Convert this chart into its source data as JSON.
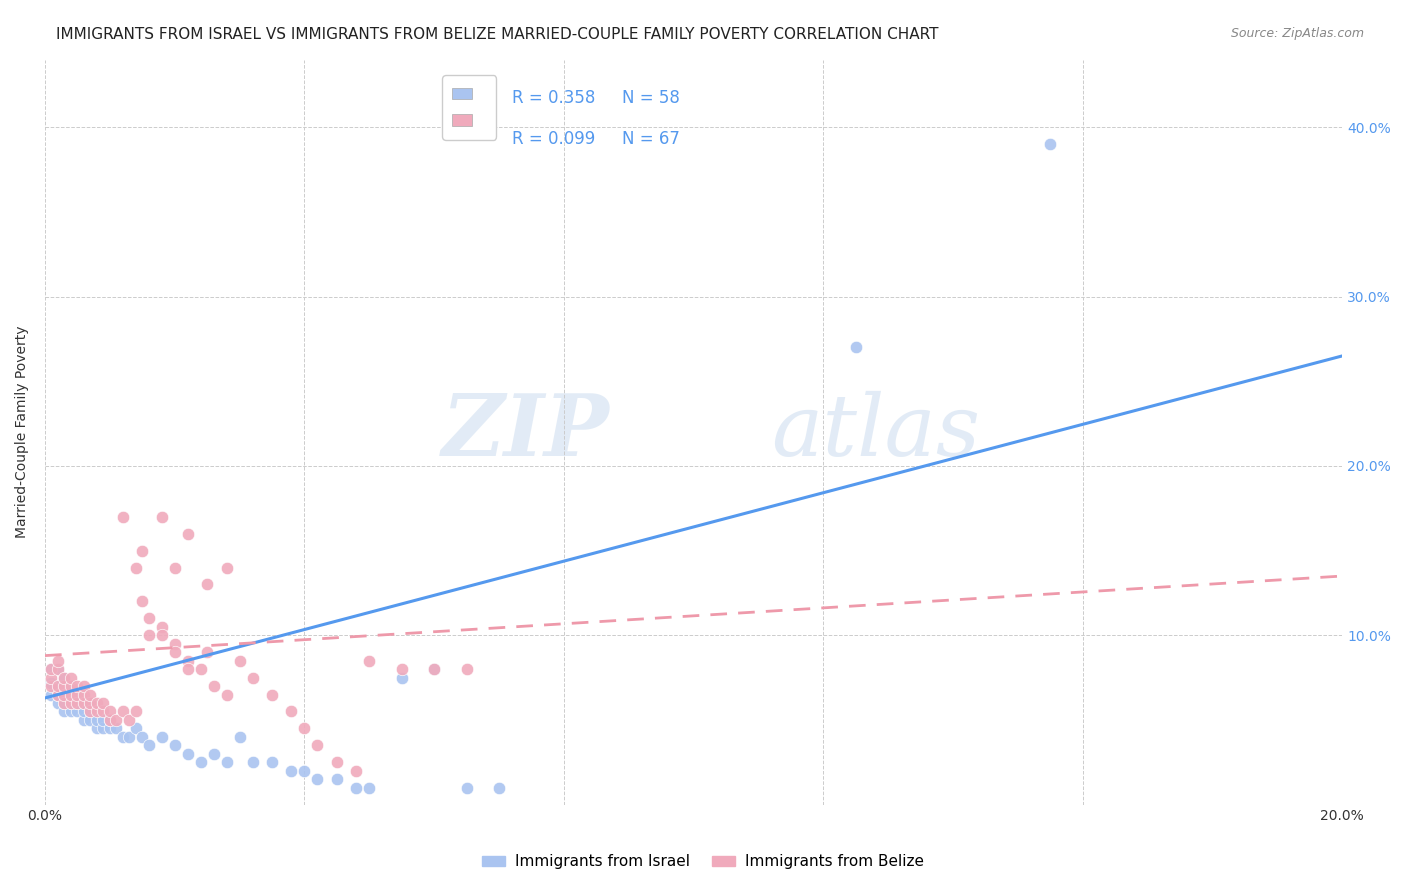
{
  "title": "IMMIGRANTS FROM ISRAEL VS IMMIGRANTS FROM BELIZE MARRIED-COUPLE FAMILY POVERTY CORRELATION CHART",
  "source": "Source: ZipAtlas.com",
  "ylabel": "Married-Couple Family Poverty",
  "xlim": [
    0.0,
    0.2
  ],
  "ylim": [
    0.0,
    0.44
  ],
  "xticks": [
    0.0,
    0.04,
    0.08,
    0.12,
    0.16,
    0.2
  ],
  "yticks": [
    0.0,
    0.1,
    0.2,
    0.3,
    0.4
  ],
  "xtick_labels": [
    "0.0%",
    "",
    "",
    "",
    "",
    "20.0%"
  ],
  "ytick_labels": [
    "",
    "10.0%",
    "20.0%",
    "30.0%",
    "40.0%"
  ],
  "watermark_zip": "ZIP",
  "watermark_atlas": "atlas",
  "legend_r1": "R = 0.358",
  "legend_n1": "N = 58",
  "legend_r2": "R = 0.099",
  "legend_n2": "N = 67",
  "israel_color": "#aac4f0",
  "belize_color": "#f0aabc",
  "israel_line_color": "#5599ee",
  "belize_line_color": "#ee99aa",
  "israel_scatter_x": [
    0.001,
    0.001,
    0.001,
    0.002,
    0.002,
    0.002,
    0.002,
    0.003,
    0.003,
    0.003,
    0.003,
    0.003,
    0.004,
    0.004,
    0.004,
    0.004,
    0.005,
    0.005,
    0.005,
    0.006,
    0.006,
    0.006,
    0.007,
    0.007,
    0.007,
    0.008,
    0.008,
    0.009,
    0.009,
    0.01,
    0.01,
    0.011,
    0.012,
    0.013,
    0.014,
    0.015,
    0.016,
    0.018,
    0.02,
    0.022,
    0.024,
    0.026,
    0.028,
    0.03,
    0.032,
    0.035,
    0.038,
    0.04,
    0.042,
    0.045,
    0.048,
    0.05,
    0.055,
    0.06,
    0.065,
    0.07,
    0.125,
    0.155
  ],
  "israel_scatter_y": [
    0.065,
    0.072,
    0.08,
    0.06,
    0.065,
    0.07,
    0.08,
    0.055,
    0.06,
    0.065,
    0.07,
    0.075,
    0.055,
    0.06,
    0.065,
    0.07,
    0.055,
    0.06,
    0.065,
    0.05,
    0.055,
    0.06,
    0.05,
    0.055,
    0.06,
    0.045,
    0.05,
    0.045,
    0.05,
    0.045,
    0.05,
    0.045,
    0.04,
    0.04,
    0.045,
    0.04,
    0.035,
    0.04,
    0.035,
    0.03,
    0.025,
    0.03,
    0.025,
    0.04,
    0.025,
    0.025,
    0.02,
    0.02,
    0.015,
    0.015,
    0.01,
    0.01,
    0.075,
    0.08,
    0.01,
    0.01,
    0.27,
    0.39
  ],
  "belize_scatter_x": [
    0.001,
    0.001,
    0.001,
    0.002,
    0.002,
    0.002,
    0.002,
    0.003,
    0.003,
    0.003,
    0.003,
    0.004,
    0.004,
    0.004,
    0.004,
    0.005,
    0.005,
    0.005,
    0.006,
    0.006,
    0.006,
    0.007,
    0.007,
    0.007,
    0.008,
    0.008,
    0.009,
    0.009,
    0.01,
    0.01,
    0.011,
    0.012,
    0.013,
    0.014,
    0.015,
    0.016,
    0.018,
    0.02,
    0.022,
    0.024,
    0.026,
    0.028,
    0.03,
    0.032,
    0.035,
    0.038,
    0.04,
    0.042,
    0.045,
    0.048,
    0.05,
    0.055,
    0.06,
    0.065,
    0.015,
    0.018,
    0.02,
    0.022,
    0.025,
    0.028,
    0.012,
    0.014,
    0.016,
    0.018,
    0.02,
    0.022,
    0.025
  ],
  "belize_scatter_y": [
    0.07,
    0.075,
    0.08,
    0.065,
    0.07,
    0.08,
    0.085,
    0.06,
    0.065,
    0.07,
    0.075,
    0.06,
    0.065,
    0.07,
    0.075,
    0.06,
    0.065,
    0.07,
    0.06,
    0.065,
    0.07,
    0.055,
    0.06,
    0.065,
    0.055,
    0.06,
    0.055,
    0.06,
    0.05,
    0.055,
    0.05,
    0.055,
    0.05,
    0.055,
    0.12,
    0.1,
    0.105,
    0.095,
    0.085,
    0.08,
    0.07,
    0.065,
    0.085,
    0.075,
    0.065,
    0.055,
    0.045,
    0.035,
    0.025,
    0.02,
    0.085,
    0.08,
    0.08,
    0.08,
    0.15,
    0.17,
    0.14,
    0.16,
    0.13,
    0.14,
    0.17,
    0.14,
    0.11,
    0.1,
    0.09,
    0.08,
    0.09
  ],
  "israel_line_x": [
    0.0,
    0.2
  ],
  "israel_line_y": [
    0.063,
    0.265
  ],
  "belize_line_x": [
    0.0,
    0.2
  ],
  "belize_line_y": [
    0.088,
    0.135
  ],
  "background_color": "#ffffff",
  "grid_color": "#cccccc",
  "title_fontsize": 11,
  "axis_label_fontsize": 10,
  "tick_fontsize": 10,
  "source_fontsize": 9,
  "legend_fontsize": 12
}
